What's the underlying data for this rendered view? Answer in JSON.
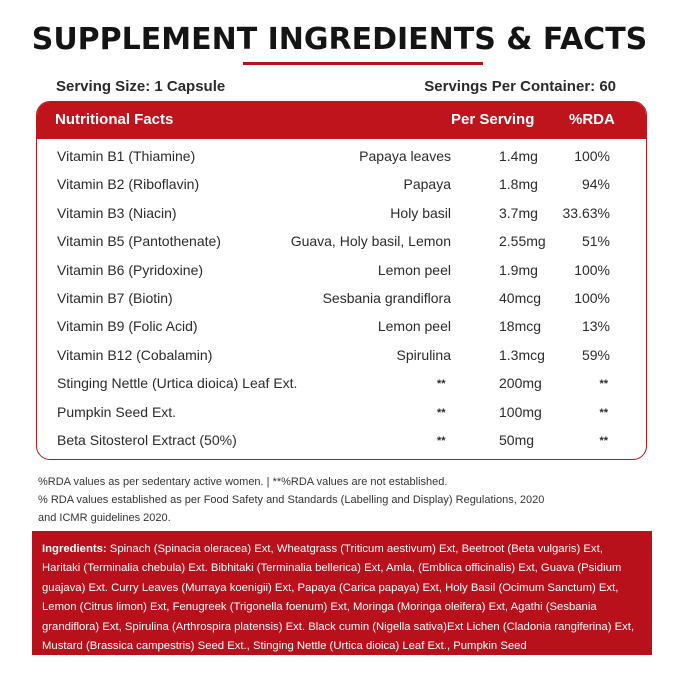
{
  "title": "SUPPLEMENT INGREDIENTS & FACTS",
  "serving_size": "Serving Size: 1 Capsule",
  "servings_per_container": "Servings Per Container: 60",
  "table": {
    "headers": {
      "name": "Nutritional Facts",
      "per_serving": "Per Serving",
      "rda": "%RDA"
    },
    "rows": [
      {
        "name": "Vitamin B1 (Thiamine)",
        "source": "Papaya leaves",
        "amount": "1.4mg",
        "rda": "100%"
      },
      {
        "name": "Vitamin B2 (Riboflavin)",
        "source": "Papaya",
        "amount": "1.8mg",
        "rda": "94%"
      },
      {
        "name": "Vitamin B3 (Niacin)",
        "source": "Holy basil",
        "amount": "3.7mg",
        "rda": "33.63%"
      },
      {
        "name": "Vitamin B5 (Pantothenate)",
        "source": "Guava, Holy basil, Lemon",
        "amount": "2.55mg",
        "rda": "51%"
      },
      {
        "name": "Vitamin B6 (Pyridoxine)",
        "source": "Lemon peel",
        "amount": "1.9mg",
        "rda": "100%"
      },
      {
        "name": "Vitamin B7 (Biotin)",
        "source": "Sesbania grandiflora",
        "amount": "40mcg",
        "rda": "100%"
      },
      {
        "name": "Vitamin B9 (Folic Acid)",
        "source": "Lemon peel",
        "amount": "18mcg",
        "rda": "13%"
      },
      {
        "name": "Vitamin B12 (Cobalamin)",
        "source": "Spirulina",
        "amount": "1.3mcg",
        "rda": "59%"
      },
      {
        "name": "Stinging Nettle (Urtica dioica) Leaf Ext.",
        "source": "**",
        "amount": "200mg",
        "rda": "**"
      },
      {
        "name": "Pumpkin Seed Ext.",
        "source": "**",
        "amount": "100mg",
        "rda": "**"
      },
      {
        "name": "Beta Sitosterol Extract (50%)",
        "source": "**",
        "amount": "50mg",
        "rda": "**"
      }
    ]
  },
  "notes": {
    "line1": "%RDA values as per sedentary active women. | **%RDA values are not established.",
    "line2": "% RDA values established as per Food Safety and Standards (Labelling and Display) Regulations, 2020",
    "line3": "and ICMR guidelines 2020."
  },
  "ingredients": {
    "label": "Ingredients:",
    "text": " Spinach (Spinacia oleracea) Ext, Wheatgrass (Triticum aestivum) Ext, Beetroot (Beta vulgaris) Ext, Haritaki (Terminalia chebula) Ext. Bibhitaki (Terminalia bellerica) Ext, Amla, (Emblica officinalis) Ext, Guava (Psidium guajava) Ext. Curry Leaves (Murraya koenigii) Ext, Papaya (Carica papaya) Ext, Holy Basil (Ocimum Sanctum) Ext, Lemon (Citrus limon) Ext, Fenugreek (Trigonella foenum) Ext, Moringa (Moringa oleifera) Ext, Agathi (Sesbania grandiflora) Ext, Spirulina (Arthrospira platensis) Ext. Black cumin (Nigella sativa)Ext Lichen (Cladonia rangiferina) Ext, Mustard (Brassica campestris) Seed Ext., Stinging Nettle (Urtica dioica) Leaf Ext., Pumpkin Seed"
  },
  "colors": {
    "accent": "#c0141d",
    "text": "#2a2a2a"
  }
}
